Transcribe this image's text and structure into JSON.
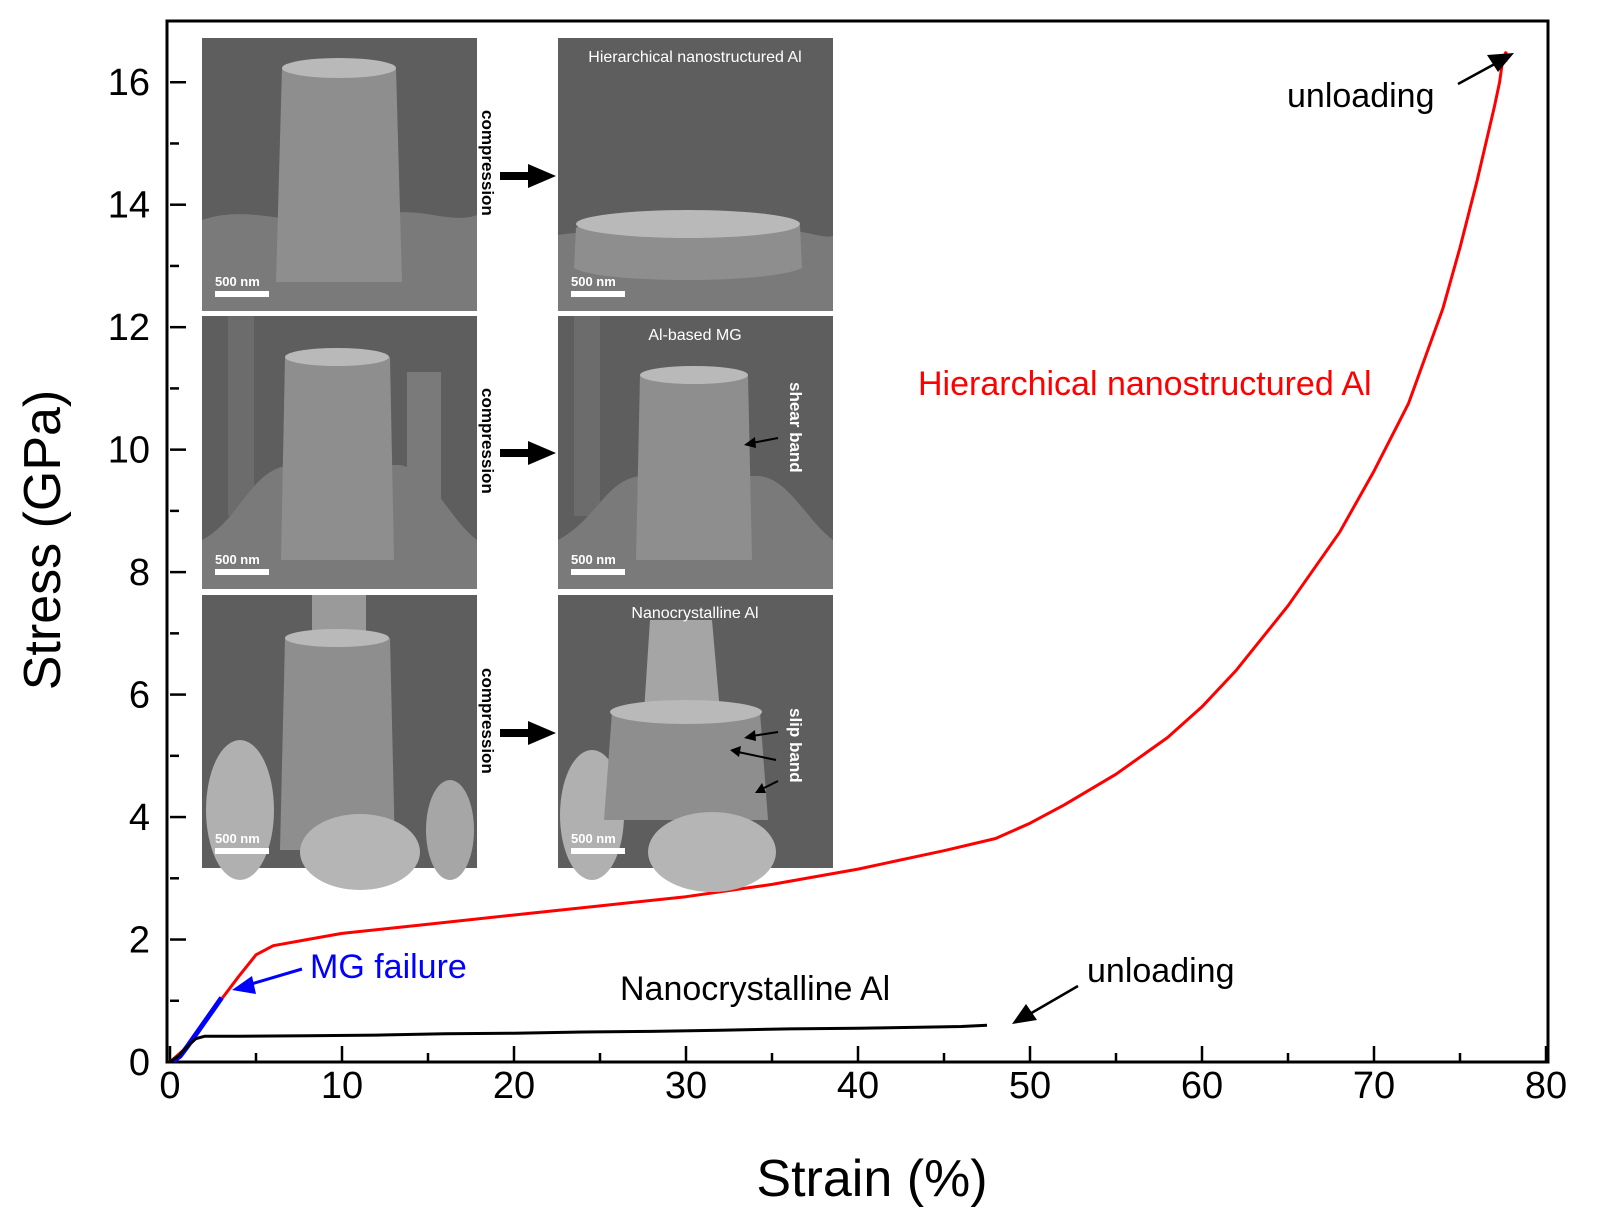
{
  "chart_data": {
    "type": "line",
    "xlabel": "Strain (%)",
    "ylabel": "Stress (GPa)",
    "xlim": [
      0,
      80
    ],
    "ylim": [
      0,
      17
    ],
    "x_ticks": [
      0,
      10,
      20,
      30,
      40,
      50,
      60,
      70,
      80
    ],
    "y_ticks": [
      0,
      2,
      4,
      6,
      8,
      10,
      12,
      14,
      16
    ],
    "grid": false,
    "legend": "none",
    "series": [
      {
        "name": "Hierarchical nanostructured Al",
        "color": "#ff0000",
        "x": [
          0,
          0.8,
          1.6,
          2.5,
          3.2,
          4.0,
          5.0,
          6.0,
          8.0,
          10,
          15,
          20,
          25,
          30,
          35,
          40,
          45,
          48,
          50,
          52,
          55,
          58,
          60,
          62,
          65,
          68,
          70,
          72,
          74,
          75,
          76,
          77,
          77.3,
          77.5,
          77.7
        ],
        "y": [
          0,
          0.2,
          0.5,
          0.85,
          1.1,
          1.4,
          1.75,
          1.9,
          2.0,
          2.1,
          2.25,
          2.4,
          2.55,
          2.7,
          2.9,
          3.15,
          3.45,
          3.65,
          3.9,
          4.2,
          4.7,
          5.3,
          5.8,
          6.4,
          7.45,
          8.65,
          9.65,
          10.75,
          12.3,
          13.3,
          14.4,
          15.6,
          16.0,
          16.4,
          16.5
        ]
      },
      {
        "name": "Al-based MG",
        "color": "#0000ff",
        "x": [
          0.2,
          0.6,
          1.0,
          1.5,
          2.0,
          2.5,
          3.0
        ],
        "y": [
          0.02,
          0.1,
          0.25,
          0.45,
          0.65,
          0.85,
          1.05
        ]
      },
      {
        "name": "Nanocrystalline Al",
        "color": "#000000",
        "x": [
          0,
          0.5,
          1.0,
          1.5,
          2.0,
          4.0,
          8.0,
          12,
          16,
          20,
          24,
          28,
          32,
          36,
          40,
          44,
          46,
          47.5
        ],
        "y": [
          0,
          0.1,
          0.25,
          0.38,
          0.42,
          0.42,
          0.43,
          0.44,
          0.46,
          0.47,
          0.49,
          0.5,
          0.52,
          0.54,
          0.55,
          0.57,
          0.58,
          0.6
        ]
      }
    ],
    "annotations": {
      "unloading_top": "unloading",
      "hier_label": "Hierarchical nanostructured Al",
      "mg_failure": "MG failure",
      "nano_label": "Nanocrystalline Al",
      "unloading_bottom": "unloading"
    }
  },
  "inset": {
    "rows": [
      {
        "after_caption": "Hierarchical nanostructured Al",
        "arrow_label": "compression",
        "scale_before": "500 nm",
        "scale_after": "500 nm",
        "band_label": ""
      },
      {
        "after_caption": "Al-based MG",
        "arrow_label": "compression",
        "scale_before": "500 nm",
        "scale_after": "500 nm",
        "band_label": "shear band"
      },
      {
        "after_caption": "Nanocrystalline Al",
        "arrow_label": "compression",
        "scale_before": "500 nm",
        "scale_after": "500 nm",
        "band_label": "slip band"
      }
    ]
  }
}
